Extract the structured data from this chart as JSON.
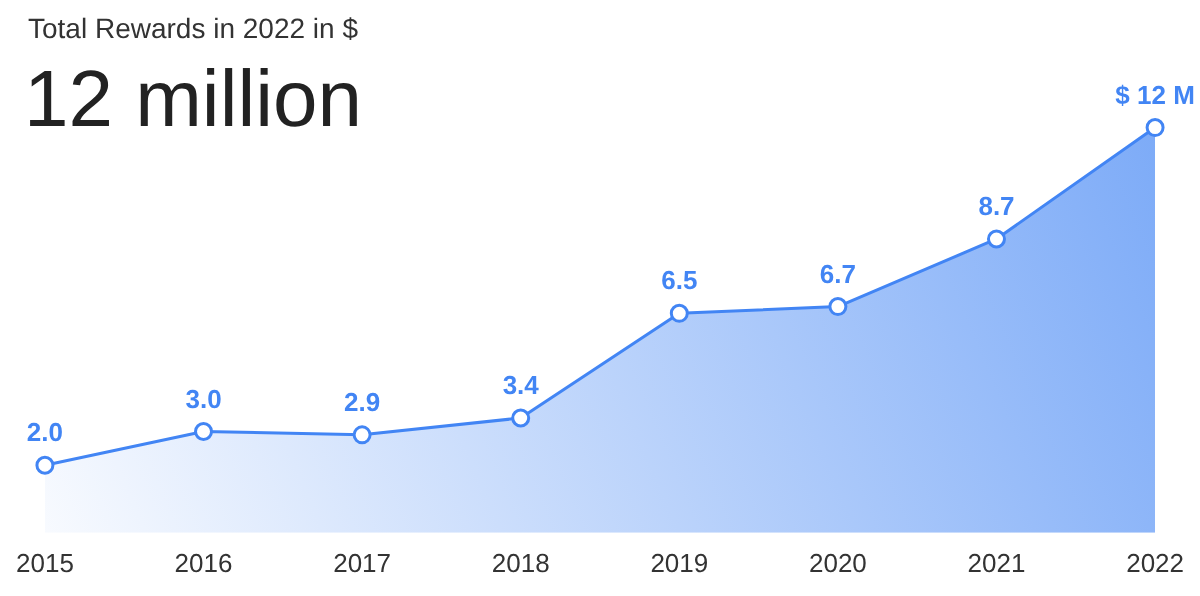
{
  "chart_data": {
    "type": "area",
    "title": "Total Rewards in 2022 in $",
    "subtitle": "12 million",
    "categories": [
      "2015",
      "2016",
      "2017",
      "2018",
      "2019",
      "2020",
      "2021",
      "2022"
    ],
    "values": [
      2.0,
      3.0,
      2.9,
      3.4,
      6.5,
      6.7,
      8.7,
      12
    ],
    "value_labels": [
      "2.0",
      "3.0",
      "2.9",
      "3.4",
      "6.5",
      "6.7",
      "8.7",
      "$ 12 M"
    ],
    "color": "#4285f4",
    "marker": "circle",
    "grid": false,
    "legend": false
  }
}
